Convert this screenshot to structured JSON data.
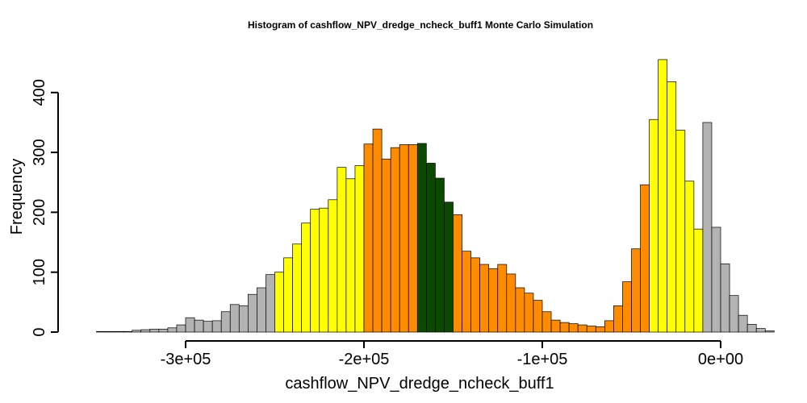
{
  "chart_data": {
    "type": "bar",
    "title": "Histogram of  cashflow_NPV_dredge_ncheck_buff1  Monte Carlo Simulation",
    "xlabel": "cashflow_NPV_dredge_ncheck_buff1",
    "ylabel": "Frequency",
    "xlim": [
      -355000,
      20000
    ],
    "ylim": [
      0,
      460
    ],
    "x_ticks": [
      -300000,
      -200000,
      -100000,
      0
    ],
    "x_tick_labels": [
      "-3e+05",
      "-2e+05",
      "-1e+05",
      "0e+00"
    ],
    "y_ticks": [
      0,
      100,
      200,
      300,
      400
    ],
    "y_tick_labels": [
      "0",
      "100",
      "200",
      "300",
      "400"
    ],
    "bin_start": -350000,
    "bin_width": 5000,
    "values": [
      1,
      1,
      1,
      1,
      3,
      4,
      5,
      5,
      7,
      12,
      24,
      20,
      18,
      19,
      34,
      46,
      44,
      63,
      74,
      96,
      100,
      124,
      147,
      182,
      205,
      207,
      221,
      275,
      256,
      278,
      314,
      339,
      289,
      308,
      313,
      313,
      315,
      282,
      257,
      217,
      196,
      135,
      124,
      113,
      106,
      113,
      97,
      74,
      65,
      53,
      34,
      20,
      16,
      14,
      12,
      10,
      9,
      19,
      44,
      84,
      139,
      246,
      355,
      455,
      418,
      337,
      252,
      172,
      350,
      175,
      114,
      61,
      28,
      13,
      6,
      2
    ],
    "bin_colors": [
      "#b3b3b3",
      "#b3b3b3",
      "#b3b3b3",
      "#b3b3b3",
      "#b3b3b3",
      "#b3b3b3",
      "#b3b3b3",
      "#b3b3b3",
      "#b3b3b3",
      "#b3b3b3",
      "#b3b3b3",
      "#b3b3b3",
      "#b3b3b3",
      "#b3b3b3",
      "#b3b3b3",
      "#b3b3b3",
      "#b3b3b3",
      "#b3b3b3",
      "#b3b3b3",
      "#b3b3b3",
      "#ffff00",
      "#ffff00",
      "#ffff00",
      "#ffff00",
      "#ffff00",
      "#ffff00",
      "#ffff00",
      "#ffff00",
      "#ffff00",
      "#ffff00",
      "#ff8c00",
      "#ff8c00",
      "#ff8c00",
      "#ff8c00",
      "#ff8c00",
      "#ff8c00",
      "#0a4a00",
      "#0a4a00",
      "#0a4a00",
      "#0a4a00",
      "#ff8c00",
      "#ff8c00",
      "#ff8c00",
      "#ff8c00",
      "#ff8c00",
      "#ff8c00",
      "#ff8c00",
      "#ff8c00",
      "#ff8c00",
      "#ff8c00",
      "#ff8c00",
      "#ff8c00",
      "#ff8c00",
      "#ff8c00",
      "#ff8c00",
      "#ff8c00",
      "#ff8c00",
      "#ff8c00",
      "#ff8c00",
      "#ff8c00",
      "#ff8c00",
      "#ff8c00",
      "#ffff00",
      "#ffff00",
      "#ffff00",
      "#ffff00",
      "#ffff00",
      "#ffff00",
      "#b3b3b3",
      "#b3b3b3",
      "#b3b3b3",
      "#b3b3b3",
      "#b3b3b3",
      "#b3b3b3",
      "#b3b3b3",
      "#b3b3b3"
    ],
    "bar_stroke": "#000000",
    "grid": false,
    "legend": "none"
  }
}
